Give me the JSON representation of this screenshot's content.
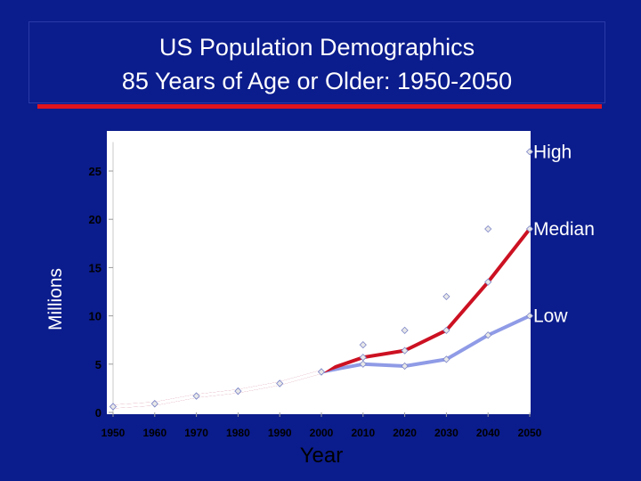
{
  "title": {
    "line1": "US Population Demographics",
    "line2": "85 Years of Age or Older: 1950-2050"
  },
  "colors": {
    "background": "#0b1c8c",
    "title_rule": "#e0141e"
  },
  "chart_data": {
    "type": "line",
    "title": "US Population Demographics 85 Years of Age or Older: 1950-2050",
    "xlabel": "Year",
    "ylabel": "Millions",
    "x": [
      1950,
      1960,
      1970,
      1980,
      1990,
      2000,
      2010,
      2020,
      2030,
      2040,
      2050
    ],
    "ylim": [
      0,
      28
    ],
    "yticks": [
      0,
      5,
      10,
      15,
      20,
      25
    ],
    "grid": false,
    "legend": "inline-right",
    "series": [
      {
        "name": "High",
        "color": "#ffffff",
        "values": [
          0.6,
          0.9,
          1.7,
          2.2,
          3.0,
          4.2,
          7.0,
          8.5,
          12.0,
          19.0,
          27.0
        ]
      },
      {
        "name": "Median",
        "color": "#cc1122",
        "values": [
          0.6,
          0.9,
          1.7,
          2.2,
          3.0,
          4.2,
          5.7,
          6.4,
          8.5,
          13.5,
          19.0
        ]
      },
      {
        "name": "Low",
        "color": "#8f9be6",
        "values": [
          0.6,
          0.9,
          1.7,
          2.2,
          3.0,
          4.2,
          5.0,
          4.8,
          5.5,
          8.0,
          10.0
        ]
      }
    ]
  }
}
